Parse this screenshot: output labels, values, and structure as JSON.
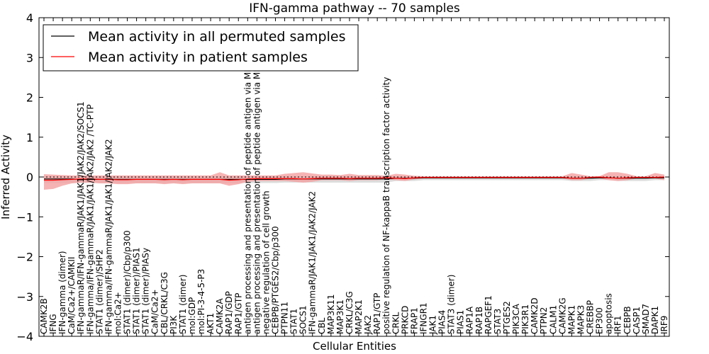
{
  "chart_data": {
    "type": "line",
    "title": "IFN-gamma pathway -- 70 samples",
    "xlabel": "Cellular Entities",
    "ylabel": "Inferred Activity",
    "ylim": [
      -4,
      4
    ],
    "yticks": [
      4,
      3,
      2,
      1,
      0,
      -1,
      -2,
      -3,
      -4
    ],
    "ytick_labels": [
      "4",
      "3",
      "2",
      "1",
      "0",
      "−1",
      "−2",
      "−3",
      "−4"
    ],
    "legend_position": "top-left",
    "colors": {
      "permuted": "#000000",
      "patient": "#ff0000",
      "patient_band": "#f4a0a0",
      "permuted_band": "#d0d0d0"
    },
    "categories": [
      "CAMK2B",
      "IFNG",
      "IFN-gamma (dimer)",
      "CaM/Ca2+/CAMKII",
      "IFN-gammaR/IFN-gammaR/JAK1/JAK1/JAK2/JAK2/SOCS1",
      "IFN-gamma/IFN-gammaR/JAK1/JAK1/JAK2/JAK2 /TC-PTP",
      "STAT1 (dimer)/SHP2",
      "IFN-gamma/IFN-gammaR/JAK1/JAK1/JAK2/JAK2",
      "mol:Ca2+",
      "STAT1 (dimer)/Cbp/p300",
      "STAT1 (dimer)/PIAS1",
      "STAT1 (dimer)/PIASy",
      "CaM/Ca2+",
      "CBL/CRKL/C3G",
      "PI3K",
      "STAT1 (dimer)",
      "mol:GDP",
      "mol:PI-3-4-5-P3",
      "AKT1",
      "CAMK2A",
      "RAP1/GDP",
      "RAP1/GTP",
      "antigen processing and presentation of peptide antigen via MHC class I",
      "antigen processing and presentation of peptide antigen via MHC class II",
      "negative regulation of cell growth",
      "CEBPB/PTGES2/Cbp/p300",
      "PTPN11",
      "STAT1",
      "SOCS1",
      "IFN-gammaR/JAK1/JAK1/JAK2/JAK2",
      "CBL",
      "MAP3K11",
      "MAP3K1",
      "CRKL/C3G",
      "MAP2K1",
      "JAK2",
      "RAP1/GTP",
      "positive regulation of NF-kappaB transcription factor activity",
      "CRKL",
      "PRKCD",
      "FRAP1",
      "IFNGR1",
      "JAK1",
      "PIAS4",
      "STAT3 (dimer)",
      "PIAS1",
      "RAP1A",
      "RAP1B",
      "RAPGEF1",
      "STAT3",
      "PTGES2",
      "PIK3CA",
      "PIK3R1",
      "CAMK2D",
      "PTPN2",
      "CALM1",
      "CAMK2G",
      "MAPK1",
      "MAPK3",
      "CREBBP",
      "EP300",
      "apoptosis",
      "IRF1",
      "CEBPB",
      "CASP1",
      "SMAD7",
      "DAPK1",
      "IRF9"
    ],
    "series": [
      {
        "name": "Mean activity in all permuted samples",
        "values": [
          -0.05,
          -0.05,
          -0.05,
          -0.05,
          -0.06,
          -0.06,
          -0.06,
          -0.06,
          -0.06,
          -0.06,
          -0.06,
          -0.06,
          -0.06,
          -0.06,
          -0.06,
          -0.06,
          -0.06,
          -0.06,
          -0.06,
          -0.06,
          -0.06,
          -0.06,
          -0.06,
          -0.06,
          -0.06,
          -0.06,
          -0.05,
          -0.05,
          -0.05,
          -0.05,
          -0.05,
          -0.05,
          -0.05,
          -0.05,
          -0.05,
          -0.05,
          -0.05,
          -0.05,
          -0.03,
          -0.03,
          -0.03,
          -0.02,
          -0.02,
          -0.02,
          -0.02,
          -0.02,
          -0.02,
          -0.02,
          -0.02,
          -0.02,
          -0.02,
          -0.02,
          -0.02,
          -0.02,
          -0.02,
          -0.02,
          -0.02,
          -0.03,
          -0.03,
          -0.03,
          -0.02,
          -0.02,
          -0.03,
          -0.03,
          -0.03,
          -0.03,
          -0.02,
          -0.02
        ],
        "band_low": [
          -0.15,
          -0.15,
          -0.15,
          -0.15,
          -0.15,
          -0.15,
          -0.15,
          -0.15,
          -0.15,
          -0.15,
          -0.15,
          -0.15,
          -0.15,
          -0.15,
          -0.15,
          -0.15,
          -0.15,
          -0.15,
          -0.15,
          -0.15,
          -0.15,
          -0.15,
          -0.15,
          -0.15,
          -0.15,
          -0.15,
          -0.14,
          -0.14,
          -0.14,
          -0.14,
          -0.14,
          -0.14,
          -0.14,
          -0.14,
          -0.14,
          -0.14,
          -0.14,
          -0.14,
          -0.1,
          -0.1,
          -0.1,
          -0.08,
          -0.08,
          -0.08,
          -0.08,
          -0.08,
          -0.08,
          -0.08,
          -0.08,
          -0.08,
          -0.08,
          -0.08,
          -0.08,
          -0.08,
          -0.08,
          -0.08,
          -0.08,
          -0.1,
          -0.1,
          -0.1,
          -0.08,
          -0.08,
          -0.1,
          -0.1,
          -0.1,
          -0.1,
          -0.08,
          -0.08
        ],
        "band_high": [
          0.02,
          0.02,
          0.02,
          0.02,
          0.02,
          0.02,
          0.02,
          0.02,
          0.02,
          0.02,
          0.02,
          0.02,
          0.02,
          0.02,
          0.02,
          0.02,
          0.02,
          0.02,
          0.02,
          0.02,
          0.02,
          0.02,
          0.02,
          0.02,
          0.02,
          0.02,
          0.02,
          0.02,
          0.02,
          0.02,
          0.02,
          0.02,
          0.02,
          0.02,
          0.02,
          0.02,
          0.02,
          0.02,
          0.02,
          0.02,
          0.02,
          0.02,
          0.02,
          0.02,
          0.02,
          0.02,
          0.02,
          0.02,
          0.02,
          0.02,
          0.02,
          0.02,
          0.02,
          0.02,
          0.02,
          0.02,
          0.02,
          0.02,
          0.02,
          0.02,
          0.02,
          0.02,
          0.02,
          0.02,
          0.02,
          0.02,
          0.02,
          0.02
        ]
      },
      {
        "name": "Mean activity in patient samples",
        "values": [
          -0.08,
          -0.08,
          -0.07,
          -0.06,
          -0.05,
          -0.05,
          -0.06,
          -0.06,
          -0.07,
          -0.07,
          -0.06,
          -0.06,
          -0.06,
          -0.07,
          -0.06,
          -0.07,
          -0.06,
          -0.06,
          -0.06,
          -0.06,
          -0.08,
          -0.07,
          -0.05,
          -0.04,
          -0.04,
          -0.04,
          -0.04,
          -0.04,
          -0.05,
          -0.04,
          -0.03,
          -0.03,
          -0.03,
          -0.04,
          -0.03,
          -0.03,
          -0.03,
          -0.02,
          -0.03,
          -0.04,
          -0.02,
          -0.01,
          -0.01,
          -0.01,
          -0.01,
          -0.01,
          -0.01,
          -0.01,
          -0.01,
          -0.01,
          -0.01,
          -0.01,
          -0.01,
          -0.01,
          -0.01,
          -0.01,
          -0.01,
          -0.03,
          -0.03,
          -0.01,
          0.0,
          -0.02,
          -0.03,
          -0.02,
          -0.01,
          -0.01,
          -0.01,
          0.0
        ],
        "band_low": [
          -0.32,
          -0.3,
          -0.22,
          -0.16,
          -0.14,
          -0.14,
          -0.16,
          -0.16,
          -0.18,
          -0.18,
          -0.16,
          -0.16,
          -0.16,
          -0.18,
          -0.16,
          -0.18,
          -0.16,
          -0.16,
          -0.16,
          -0.16,
          -0.22,
          -0.18,
          -0.12,
          -0.1,
          -0.1,
          -0.1,
          -0.1,
          -0.12,
          -0.14,
          -0.12,
          -0.08,
          -0.08,
          -0.08,
          -0.1,
          -0.08,
          -0.08,
          -0.08,
          -0.06,
          -0.08,
          -0.1,
          -0.06,
          -0.04,
          -0.04,
          -0.04,
          -0.04,
          -0.04,
          -0.04,
          -0.04,
          -0.04,
          -0.04,
          -0.04,
          -0.04,
          -0.04,
          -0.04,
          -0.04,
          -0.04,
          -0.04,
          -0.08,
          -0.08,
          -0.04,
          -0.04,
          -0.08,
          -0.1,
          -0.08,
          -0.04,
          -0.04,
          -0.04,
          -0.08
        ],
        "band_high": [
          0.07,
          0.06,
          0.05,
          0.04,
          0.04,
          0.04,
          0.04,
          0.04,
          0.04,
          0.04,
          0.04,
          0.04,
          0.04,
          0.04,
          0.04,
          0.04,
          0.04,
          0.04,
          0.04,
          0.12,
          0.04,
          0.04,
          0.04,
          0.04,
          0.04,
          0.04,
          0.08,
          0.1,
          0.12,
          0.09,
          0.06,
          0.06,
          0.05,
          0.08,
          0.05,
          0.05,
          0.05,
          0.03,
          0.08,
          0.06,
          0.03,
          0.02,
          0.02,
          0.02,
          0.02,
          0.02,
          0.02,
          0.02,
          0.02,
          0.02,
          0.02,
          0.02,
          0.02,
          0.02,
          0.02,
          0.02,
          0.02,
          0.1,
          0.06,
          0.02,
          0.02,
          0.12,
          0.12,
          0.08,
          0.02,
          0.02,
          0.1,
          0.06
        ]
      }
    ]
  }
}
